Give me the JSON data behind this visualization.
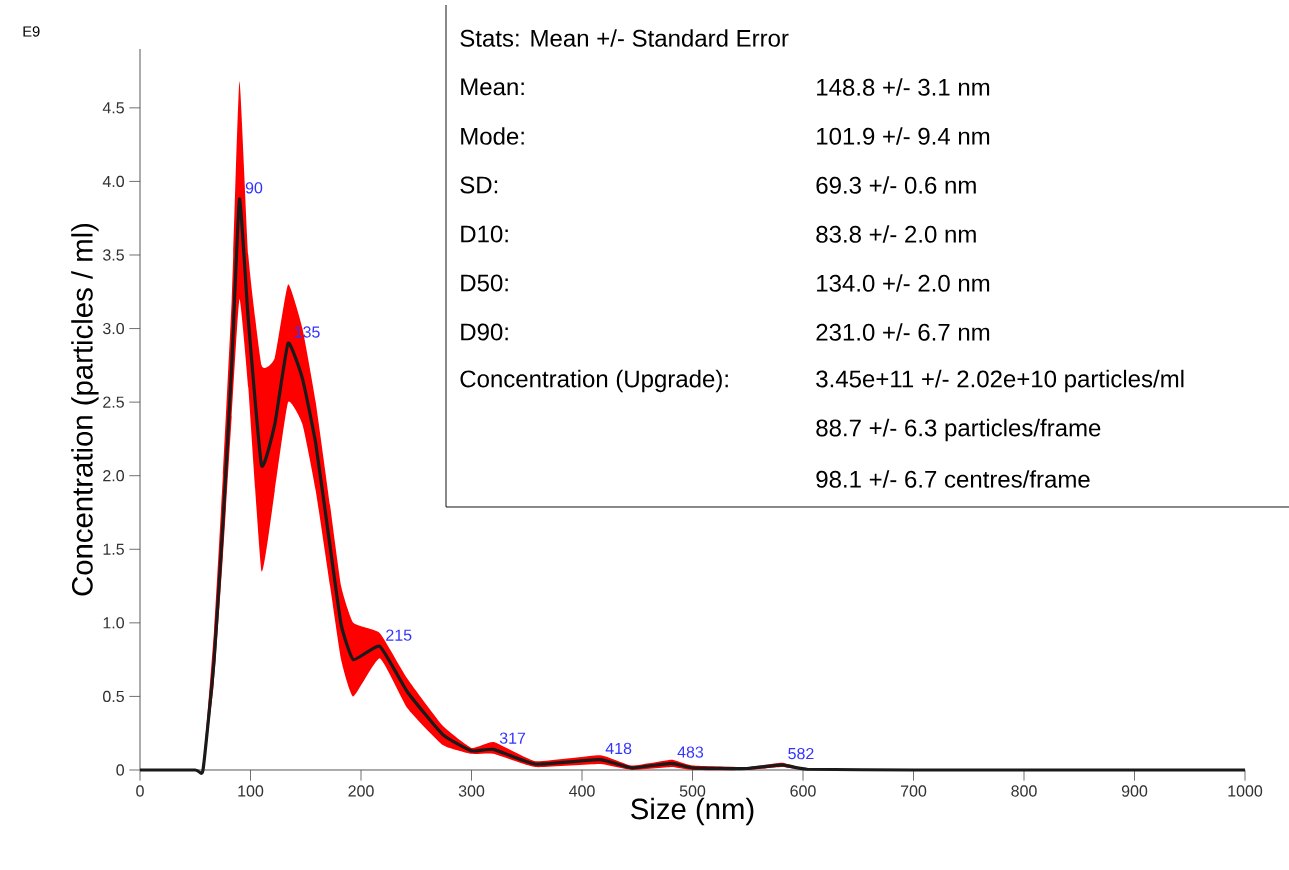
{
  "chart_data": {
    "type": "line",
    "xlabel": "Size (nm)",
    "ylabel": "Concentration (particles / ml)",
    "xlim": [
      0,
      1000
    ],
    "ylim": [
      0,
      4.9
    ],
    "xticks": [
      0,
      100,
      200,
      300,
      400,
      500,
      600,
      700,
      800,
      900,
      1000
    ],
    "yticks": [
      0,
      0.5,
      {
        "value": 1,
        "label": "1.0"
      },
      1.5,
      {
        "value": 2,
        "label": "2.0"
      },
      2.5,
      {
        "value": 3,
        "label": "3.0"
      },
      3.5,
      {
        "value": 4,
        "label": "4.0"
      },
      4.5
    ],
    "series": [
      {
        "color": "#1a1a1a",
        "x": [
          0,
          50,
          57,
          67,
          75,
          83,
          90,
          98,
          110,
          122,
          134,
          147,
          159,
          172,
          182,
          193,
          217,
          242,
          274,
          300,
          320,
          358,
          416,
          445,
          481,
          500,
          549,
          581,
          604,
          700,
          800,
          900,
          1000
        ],
        "values": [
          0,
          0,
          0,
          0.74,
          1.67,
          2.75,
          3.88,
          3.06,
          2.07,
          2.35,
          2.9,
          2.66,
          2.22,
          1.52,
          0.99,
          0.75,
          0.84,
          0.53,
          0.24,
          0.13,
          0.14,
          0.04,
          0.07,
          0.015,
          0.045,
          0.015,
          0.01,
          0.035,
          0.005,
          0,
          0,
          0,
          0
        ],
        "lower": [
          0,
          0,
          0,
          0.6,
          1.45,
          2.4,
          3.2,
          2.6,
          1.35,
          1.9,
          2.5,
          2.35,
          1.9,
          1.25,
          0.75,
          0.5,
          0.76,
          0.42,
          0.17,
          0.11,
          0.11,
          0.02,
          0.04,
          0,
          0.02,
          0,
          0,
          0.02,
          0,
          0,
          0,
          0,
          0
        ],
        "upper": [
          0,
          0,
          0.02,
          0.95,
          2.0,
          3.2,
          4.68,
          3.5,
          2.75,
          2.8,
          3.3,
          3.0,
          2.5,
          1.8,
          1.25,
          1.0,
          0.93,
          0.62,
          0.3,
          0.15,
          0.19,
          0.06,
          0.1,
          0.03,
          0.07,
          0.03,
          0.02,
          0.05,
          0.01,
          0,
          0,
          0,
          0
        ]
      }
    ],
    "annotations": [
      "E9",
      "Stats: Mean +/- Standard Error",
      "Mean:",
      "148.8 +/- 3.1 nm",
      "Mode:",
      "101.9 +/- 9.4 nm",
      "SD:",
      "69.3 +/- 0.6 nm",
      "D10:",
      "83.8 +/- 2.0 nm",
      "D50:",
      "134.0 +/- 2.0 nm",
      "D90:",
      "231.0 +/- 6.7 nm",
      "Concentration (Upgrade):",
      "3.45e+11 +/- 2.02e+10 particles/ml",
      "88.7 +/- 6.3 particles/frame",
      "98.1 +/- 6.7 centres/frame",
      {
        "text": "90",
        "x": 90,
        "y": 3.88
      },
      {
        "text": "135",
        "x": 134,
        "y": 2.9
      },
      {
        "text": "215",
        "x": 217,
        "y": 0.84
      },
      {
        "text": "317",
        "x": 320,
        "y": 0.14
      },
      {
        "text": "418",
        "x": 416,
        "y": 0.07
      },
      {
        "text": "483",
        "x": 481,
        "y": 0.045
      },
      {
        "text": "582",
        "x": 581,
        "y": 0.035
      }
    ]
  }
}
